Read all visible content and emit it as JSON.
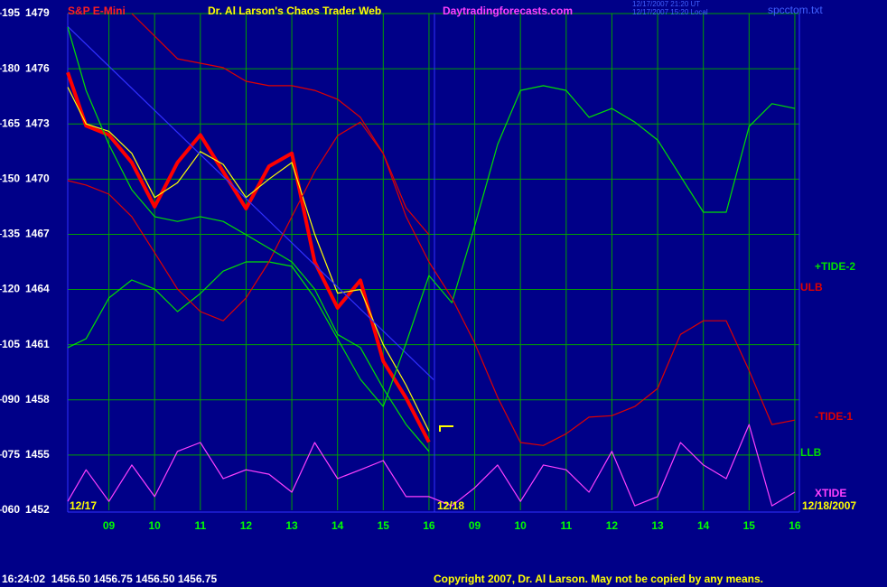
{
  "chart_data": {
    "type": "line",
    "instrument": "S&P E-Mini",
    "title": "Dr. Al Larson's Chaos Trader Web",
    "website": "Daytradingforecasts.com",
    "timestamp_ut": "12/17/2007 21:20 UT",
    "timestamp_local": "12/17/2007 15:20 Local",
    "filename": "spcctom.txt",
    "quote": "16:24:02  1456.50 1456.75 1456.50 1456.75",
    "copyright": "Copyright 2007, Dr. Al Larson. May not be copied by any means.",
    "date_labels": [
      "12/17",
      "12/18",
      "12/18/2007"
    ],
    "grid": true,
    "xlim": [
      8.1,
      24.1
    ],
    "xticks": [
      {
        "value": 9,
        "label": "09"
      },
      10,
      11,
      12,
      13,
      14,
      15,
      16,
      {
        "value": 17,
        "label": "09"
      },
      {
        "value": 18,
        "label": "10"
      },
      {
        "value": 19,
        "label": "11"
      },
      {
        "value": 20,
        "label": "12"
      },
      {
        "value": 21,
        "label": "13"
      },
      {
        "value": 22,
        "label": "14"
      },
      {
        "value": 23,
        "label": "15"
      },
      {
        "value": 24,
        "label": "16"
      }
    ],
    "ylim": [
      1452,
      1479
    ],
    "yticks": [
      1452,
      1455,
      1458,
      1461,
      1464,
      1467,
      1470,
      1473,
      1476,
      1479
    ],
    "y2lim": [
      60,
      195
    ],
    "y2ticks": [
      {
        "value": 60,
        "label": "060"
      },
      {
        "value": 75,
        "label": "075"
      },
      {
        "value": 90,
        "label": "090"
      },
      105,
      120,
      135,
      150,
      165,
      180,
      195
    ],
    "x": [
      8.1,
      8.5,
      9,
      9.5,
      10,
      10.5,
      11,
      11.5,
      12,
      12.5,
      13,
      13.5,
      14,
      14.5,
      15,
      15.5,
      16,
      16.5,
      17,
      17.5,
      18,
      18.5,
      19,
      19.5,
      20,
      20.5,
      21,
      21.5,
      22,
      22.5,
      23,
      23.5,
      24
    ],
    "series": [
      {
        "color": "#ff0000",
        "width": 4,
        "values": [
          1475.8,
          1472.9,
          1472.4,
          1470.9,
          1468.5,
          1470.9,
          1472.4,
          1470.4,
          1468.4,
          1470.7,
          1471.4,
          1465.5,
          1463.0,
          1464.5,
          1460.1,
          1458.1,
          1455.7,
          null,
          null,
          null,
          null,
          null,
          null,
          null,
          null,
          null,
          null,
          null,
          null,
          null,
          null,
          null,
          null
        ]
      },
      {
        "color": "#ffff00",
        "width": 1.2,
        "values": [
          1475.0,
          1473.0,
          1472.6,
          1471.4,
          1469.0,
          1469.8,
          1471.5,
          1470.8,
          1469.0,
          1470.0,
          1470.9,
          1467.0,
          1463.8,
          1464.0,
          1461.0,
          1458.8,
          1456.3,
          null,
          null,
          null,
          null,
          null,
          null,
          null,
          null,
          null,
          null,
          null,
          null,
          null,
          null,
          null,
          null
        ]
      },
      {
        "color": "#3030ff",
        "width": 1.2,
        "x": [
          8.1,
          16.1
        ],
        "values": [
          1478.3,
          1459.1
        ]
      },
      {
        "name": "+TIDE-2",
        "axis": "y2",
        "color": "#00e000",
        "width": 1.2,
        "values": [
          104.2,
          106.6,
          117.7,
          122.6,
          120.1,
          114.0,
          118.9,
          125.0,
          127.5,
          127.5,
          126.3,
          117.7,
          106.6,
          95.6,
          88.2,
          105.4,
          123.8,
          116.4,
          137.3,
          159.4,
          174.1,
          175.4,
          174.1,
          166.8,
          169.2,
          165.5,
          160.6,
          150.8,
          141.0,
          141.0,
          164.3,
          170.5,
          169.2
        ]
      },
      {
        "name": "ULB",
        "axis": "y2",
        "color": "#e00000",
        "width": 1.2,
        "values": [
          null,
          null,
          null,
          195,
          188.9,
          182.7,
          181.5,
          180.3,
          176.6,
          175.4,
          175.4,
          174.1,
          171.7,
          166.8,
          157.0,
          142.2,
          134.9,
          null,
          null,
          null,
          null,
          null,
          null,
          null,
          null,
          null,
          null,
          null,
          null,
          null,
          null,
          null,
          null
        ]
      },
      {
        "name": "-TIDE-1",
        "axis": "y2",
        "color": "#e00000",
        "width": 1.2,
        "values": [
          149.6,
          148.4,
          145.9,
          139.8,
          130.0,
          120.1,
          114.0,
          111.5,
          117.7,
          127.5,
          139.8,
          152.0,
          161.8,
          165.5,
          156.9,
          139.8,
          127.5,
          117.7,
          105.4,
          90.7,
          78.4,
          77.6,
          80.8,
          85.3,
          85.7,
          88.2,
          93.1,
          107.8,
          111.5,
          111.5,
          98.0,
          83.3,
          84.5
        ]
      },
      {
        "name": "LLB",
        "axis": "y2",
        "color": "#00e000",
        "width": 1.2,
        "values": [
          191.3,
          174.1,
          159.4,
          147.1,
          139.8,
          138.5,
          139.8,
          138.5,
          134.9,
          131.2,
          127.5,
          120.1,
          107.8,
          104.2,
          93.1,
          83.3,
          76.0,
          null,
          null,
          null,
          null,
          null,
          null,
          null,
          null,
          null,
          null,
          null,
          null,
          null,
          null,
          null,
          null
        ]
      },
      {
        "name": "XTIDE",
        "axis": "y2",
        "color": "#ff40ff",
        "width": 1.2,
        "values": [
          62.4,
          71.0,
          62.4,
          72.3,
          63.7,
          76.0,
          78.4,
          68.6,
          71.0,
          69.8,
          64.9,
          78.4,
          68.6,
          71.0,
          73.5,
          63.7,
          63.7,
          61.2,
          66.1,
          72.3,
          62.4,
          72.3,
          71.0,
          64.9,
          76.0,
          61.2,
          63.7,
          78.4,
          72.3,
          68.6,
          83.3,
          61.2,
          64.9
        ]
      }
    ]
  }
}
